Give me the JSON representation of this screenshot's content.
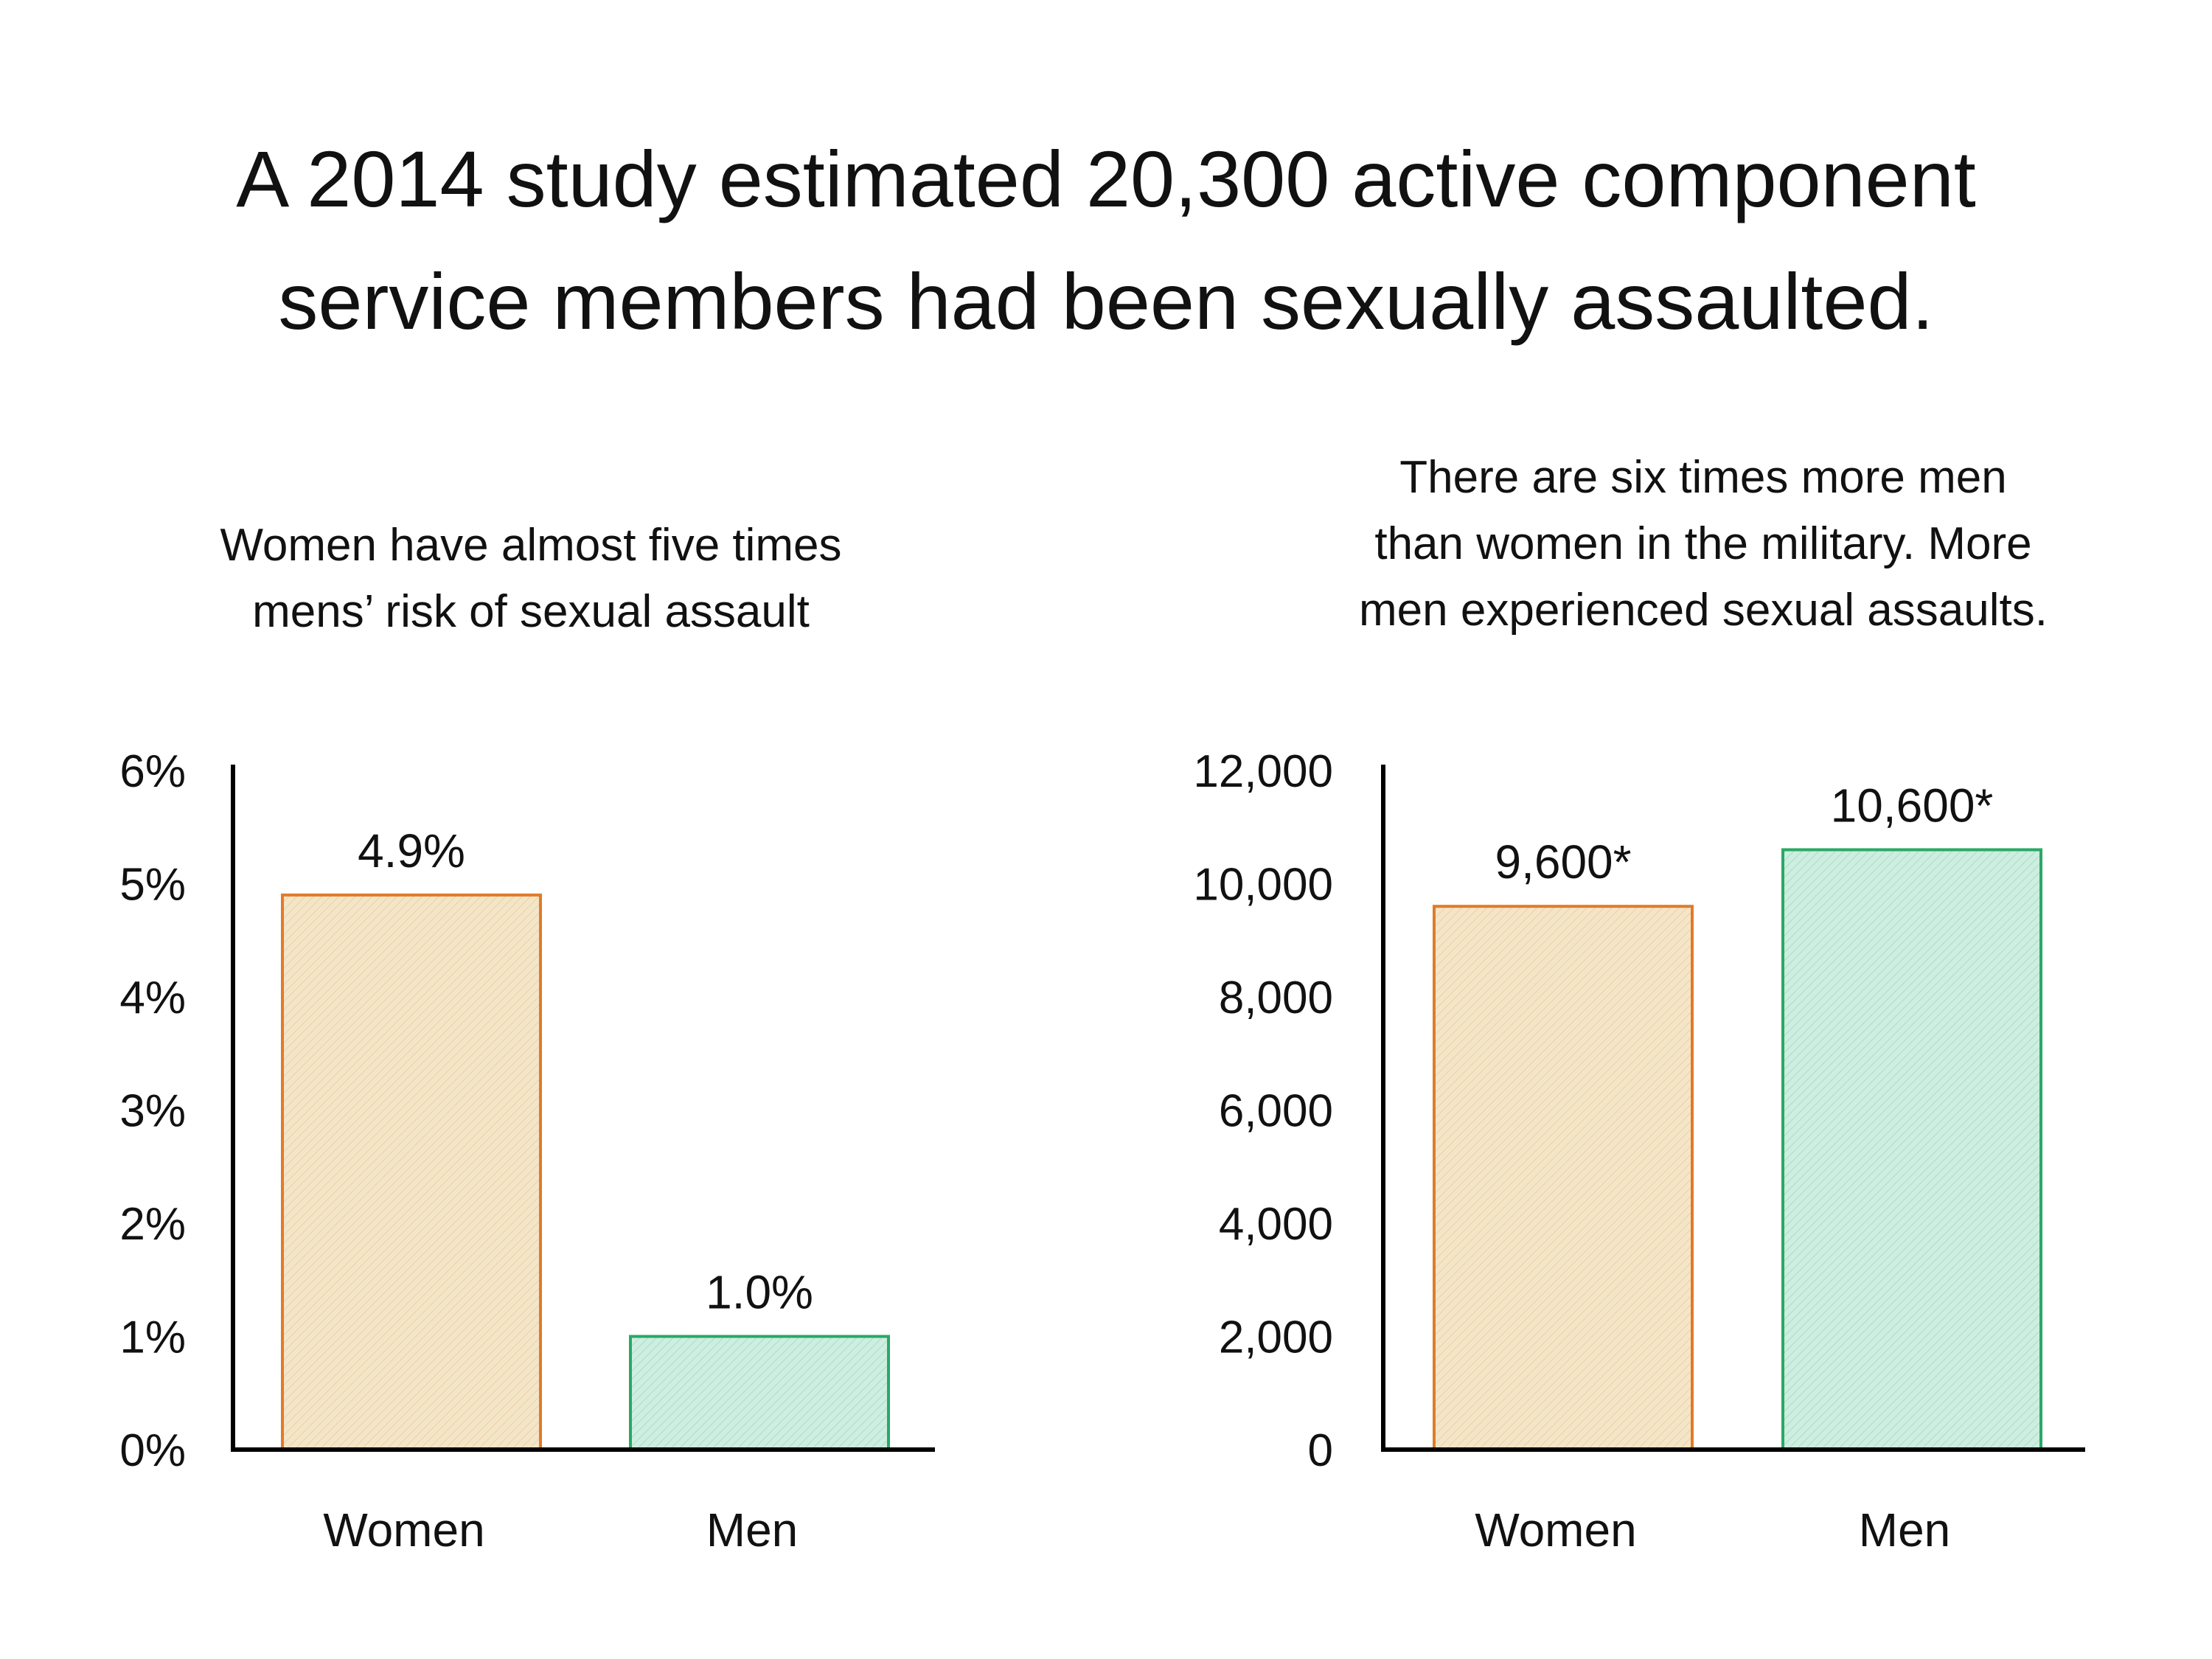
{
  "title_lines": [
    "A 2014 study estimated 20,300 active component",
    "service members had been sexually assaulted."
  ],
  "colors": {
    "women_fill": "#f3e6c8",
    "women_stroke": "#e07b2a",
    "men_fill": "#cdeee0",
    "men_stroke": "#2aa866",
    "axis": "#000000"
  },
  "chart_data": [
    {
      "type": "bar",
      "title_lines": [
        "Women have almost five times",
        "mens’ risk of sexual assault"
      ],
      "categories": [
        "Women",
        "Men"
      ],
      "values": [
        4.9,
        1.0
      ],
      "data_labels": [
        "4.9%",
        "1.0%"
      ],
      "yticks": [
        0,
        1,
        2,
        3,
        4,
        5,
        6
      ],
      "ytick_labels": [
        "0%",
        "1%",
        "2%",
        "3%",
        "4%",
        "5%",
        "6%"
      ],
      "ylim": [
        0,
        6
      ],
      "xlabel": "",
      "ylabel": ""
    },
    {
      "type": "bar",
      "title_lines": [
        "There are six times more men",
        "than women in the military. More",
        "men experienced sexual assaults."
      ],
      "categories": [
        "Women",
        "Men"
      ],
      "values": [
        9600,
        10600
      ],
      "data_labels": [
        "9,600*",
        "10,600*"
      ],
      "yticks": [
        0,
        2000,
        4000,
        6000,
        8000,
        10000,
        12000
      ],
      "ytick_labels": [
        "0",
        "2,000",
        "4,000",
        "6,000",
        "8,000",
        "10,000",
        "12,000"
      ],
      "ylim": [
        0,
        12000
      ],
      "xlabel": "",
      "ylabel": ""
    }
  ]
}
